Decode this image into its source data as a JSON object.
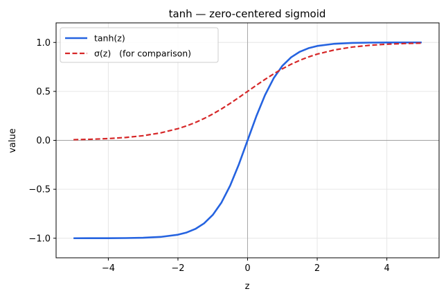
{
  "chart_data": {
    "type": "line",
    "title": "tanh — zero-centered sigmoid",
    "xlabel": "z",
    "ylabel": "value",
    "xlim": [
      -5.5,
      5.5
    ],
    "ylim": [
      -1.2,
      1.2
    ],
    "grid": true,
    "legend_position": "top-left",
    "x_ticks": [
      {
        "value": -4,
        "label": "−4"
      },
      {
        "value": -2,
        "label": "−2"
      },
      {
        "value": 0,
        "label": "0"
      },
      {
        "value": 2,
        "label": "2"
      },
      {
        "value": 4,
        "label": "4"
      }
    ],
    "y_ticks": [
      {
        "value": -1.0,
        "label": "−1.0"
      },
      {
        "value": -0.5,
        "label": "−0.5"
      },
      {
        "value": 0.0,
        "label": "0.0"
      },
      {
        "value": 0.5,
        "label": "0.5"
      },
      {
        "value": 1.0,
        "label": "1.0"
      }
    ],
    "x": [
      -5,
      -4.5,
      -4,
      -3.5,
      -3,
      -2.5,
      -2,
      -1.75,
      -1.5,
      -1.25,
      -1,
      -0.75,
      -0.5,
      -0.25,
      0,
      0.25,
      0.5,
      0.75,
      1,
      1.25,
      1.5,
      1.75,
      2,
      2.5,
      3,
      3.5,
      4,
      4.5,
      5
    ],
    "series": [
      {
        "name": "tanh(z)",
        "color": "#2563e0",
        "style": "solid",
        "values": [
          -0.9999,
          -0.9998,
          -0.9993,
          -0.9982,
          -0.9951,
          -0.9866,
          -0.964,
          -0.9414,
          -0.9051,
          -0.8483,
          -0.7616,
          -0.6351,
          -0.4621,
          -0.2449,
          0,
          0.2449,
          0.4621,
          0.6351,
          0.7616,
          0.8483,
          0.9051,
          0.9414,
          0.964,
          0.9866,
          0.9951,
          0.9982,
          0.9993,
          0.9998,
          0.9999
        ]
      },
      {
        "name": "σ(z)   (for comparison)",
        "color": "#d62728",
        "style": "dashed",
        "values": [
          0.0067,
          0.011,
          0.018,
          0.0293,
          0.0474,
          0.0759,
          0.1192,
          0.148,
          0.1824,
          0.2227,
          0.2689,
          0.3208,
          0.3775,
          0.4378,
          0.5,
          0.5622,
          0.6225,
          0.6792,
          0.7311,
          0.7773,
          0.8176,
          0.852,
          0.8808,
          0.9241,
          0.9526,
          0.9707,
          0.982,
          0.989,
          0.9933
        ]
      }
    ]
  }
}
